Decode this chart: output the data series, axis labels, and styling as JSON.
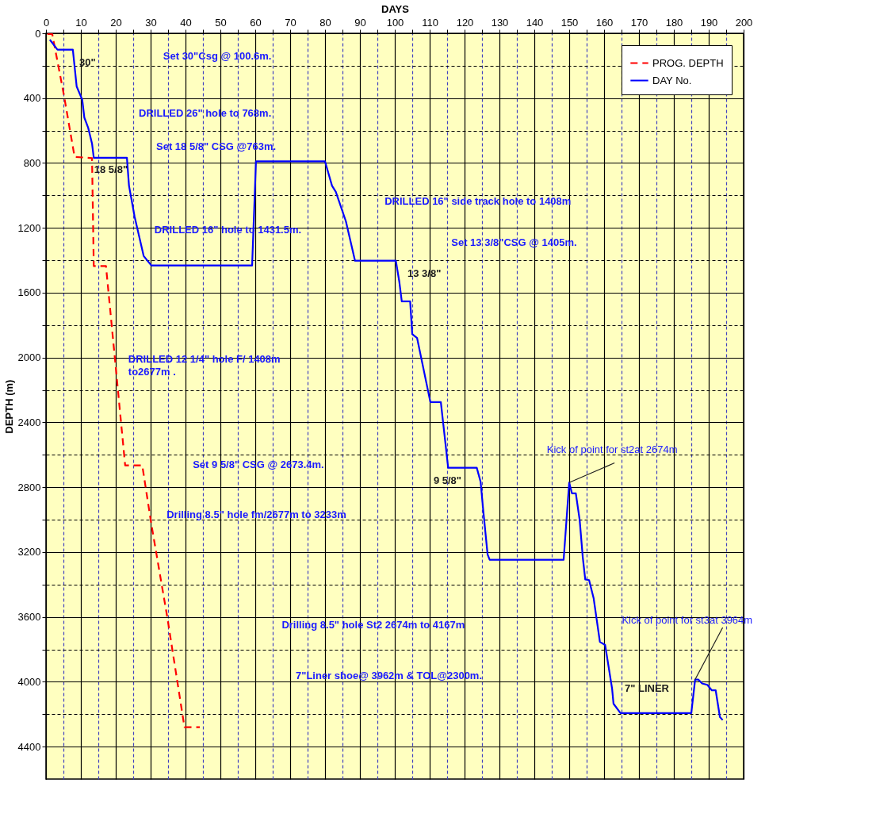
{
  "chart_data": {
    "type": "line",
    "xlabel": "DAYS",
    "ylabel": "DEPTH (m)",
    "xlim": [
      0,
      200
    ],
    "xticks": [
      0,
      {
        "value": 5,
        "label": null
      },
      10,
      {
        "value": 15,
        "label": null
      },
      20,
      {
        "value": 25,
        "label": null
      },
      30,
      {
        "value": 35,
        "label": null
      },
      40,
      {
        "value": 45,
        "label": null
      },
      50,
      {
        "value": 55,
        "label": null
      },
      60,
      {
        "value": 65,
        "label": null
      },
      70,
      {
        "value": 75,
        "label": null
      },
      80,
      {
        "value": 85,
        "label": null
      },
      90,
      {
        "value": 95,
        "label": null
      },
      100,
      {
        "value": 105,
        "label": null
      },
      110,
      {
        "value": 115,
        "label": null
      },
      120,
      {
        "value": 125,
        "label": null
      },
      130,
      {
        "value": 135,
        "label": null
      },
      140,
      {
        "value": 145,
        "label": null
      },
      150,
      {
        "value": 155,
        "label": null
      },
      160,
      {
        "value": 165,
        "label": null
      },
      170,
      {
        "value": 175,
        "label": null
      },
      180,
      {
        "value": 185,
        "label": null
      },
      190,
      {
        "value": 195,
        "label": null
      },
      200
    ],
    "ylim": [
      4600,
      0
    ],
    "yticks": [
      0,
      {
        "value": 200,
        "label": null
      },
      400,
      {
        "value": 600,
        "label": null
      },
      800,
      {
        "value": 1000,
        "label": null
      },
      1200,
      {
        "value": 1400,
        "label": null
      },
      1600,
      {
        "value": 1800,
        "label": null
      },
      2000,
      {
        "value": 2200,
        "label": null
      },
      2400,
      {
        "value": 2600,
        "label": null
      },
      2800,
      {
        "value": 3000,
        "label": null
      },
      3200,
      {
        "value": 3400,
        "label": null
      },
      3600,
      {
        "value": 3800,
        "label": null
      },
      4000,
      {
        "value": 4200,
        "label": null
      },
      4400
    ],
    "grid": true,
    "legend": "top right",
    "marker": "none",
    "series": [
      {
        "name": "PROG. DEPTH",
        "color": "#ff0000",
        "line_style": "dashed",
        "x": [
          0.4,
          1.8,
          5.1,
          8.2,
          13.2,
          13.7,
          17.2,
          19.8,
          22.7,
          27.6,
          30.2,
          34.8,
          39.7,
          44.1
        ],
        "values": [
          5,
          5,
          376,
          762,
          770,
          1436,
          1436,
          2015,
          2665,
          2665,
          3027,
          3605,
          4280,
          4280
        ]
      },
      {
        "name": "DAY  No.",
        "color": "#0000ff",
        "line_style": "solid",
        "x": [
          1.1,
          3.3,
          7.7,
          8.8,
          10.4,
          11,
          12.1,
          13.2,
          13.7,
          23.2,
          23.8,
          25.4,
          28,
          30.2,
          59.1,
          60.2,
          80,
          82,
          83.1,
          86,
          88.6,
          100.3,
          101.3,
          102,
          104.4,
          105,
          106.4,
          110.2,
          113.2,
          115.3,
          123.5,
          124.6,
          125.3,
          126.6,
          127.2,
          148.4,
          150,
          150.8,
          151.9,
          153,
          153.9,
          154.6,
          155.7,
          157,
          158.8,
          160.3,
          162.3,
          162.7,
          164.7,
          185,
          186.1,
          187,
          188.1,
          189.6,
          190.9,
          192,
          193.2,
          194
        ],
        "values": [
          39,
          101,
          101,
          328,
          410,
          520,
          583,
          680,
          768,
          768,
          940,
          1130,
          1373,
          1432,
          1432,
          790,
          790,
          940,
          978,
          1161,
          1403,
          1403,
          1533,
          1653,
          1653,
          1855,
          1880,
          2275,
          2275,
          2680,
          2680,
          2766,
          2930,
          3214,
          3248,
          3248,
          2771,
          2838,
          2838,
          3002,
          3234,
          3369,
          3373,
          3484,
          3754,
          3773,
          4043,
          4135,
          4193,
          4193,
          3986,
          3986,
          4010,
          4019,
          4053,
          4053,
          4217,
          4236
        ]
      }
    ],
    "annotations": [
      "Set 30\"Csg @ 100.6m.",
      "DRILLED 26\" hole to  768m.",
      "Set 18 5/8\" CSG @763m.",
      "DRILLED 16\" side track hole to  1408m",
      "DRILLED 16\" hole to  1431.5m.",
      "Set 13 3/8\"CSG @ 1405m.",
      "DRILLED  12 1/4\" hole F/ 1408m\nto2677m  .",
      "Set 9 5/8\" CSG @ 2673.4m.",
      "Drilling 8.5\" hole fm/2677m  to 3233m",
      {
        "text": "Kick of point for st2at 2674m",
        "x": 150,
        "y": 2771
      },
      "Drilling 8.5\" hole St2 2674m  to 4167m",
      {
        "text": "Kick of point for st3at 3964m",
        "x": 186.1,
        "y": 3986
      },
      "7\"Liner shoe@ 3962m  & TOL@2300m.",
      {
        "text": "30\"",
        "x": 5,
        "y": 101
      },
      {
        "text": "18 5/8\"",
        "x": 12,
        "y": 763
      },
      {
        "text": "13 3/8\"",
        "x": 100,
        "y": 1403
      },
      {
        "text": "9 5/8\"",
        "x": 120,
        "y": 2680
      },
      "7\" LINER"
    ]
  }
}
